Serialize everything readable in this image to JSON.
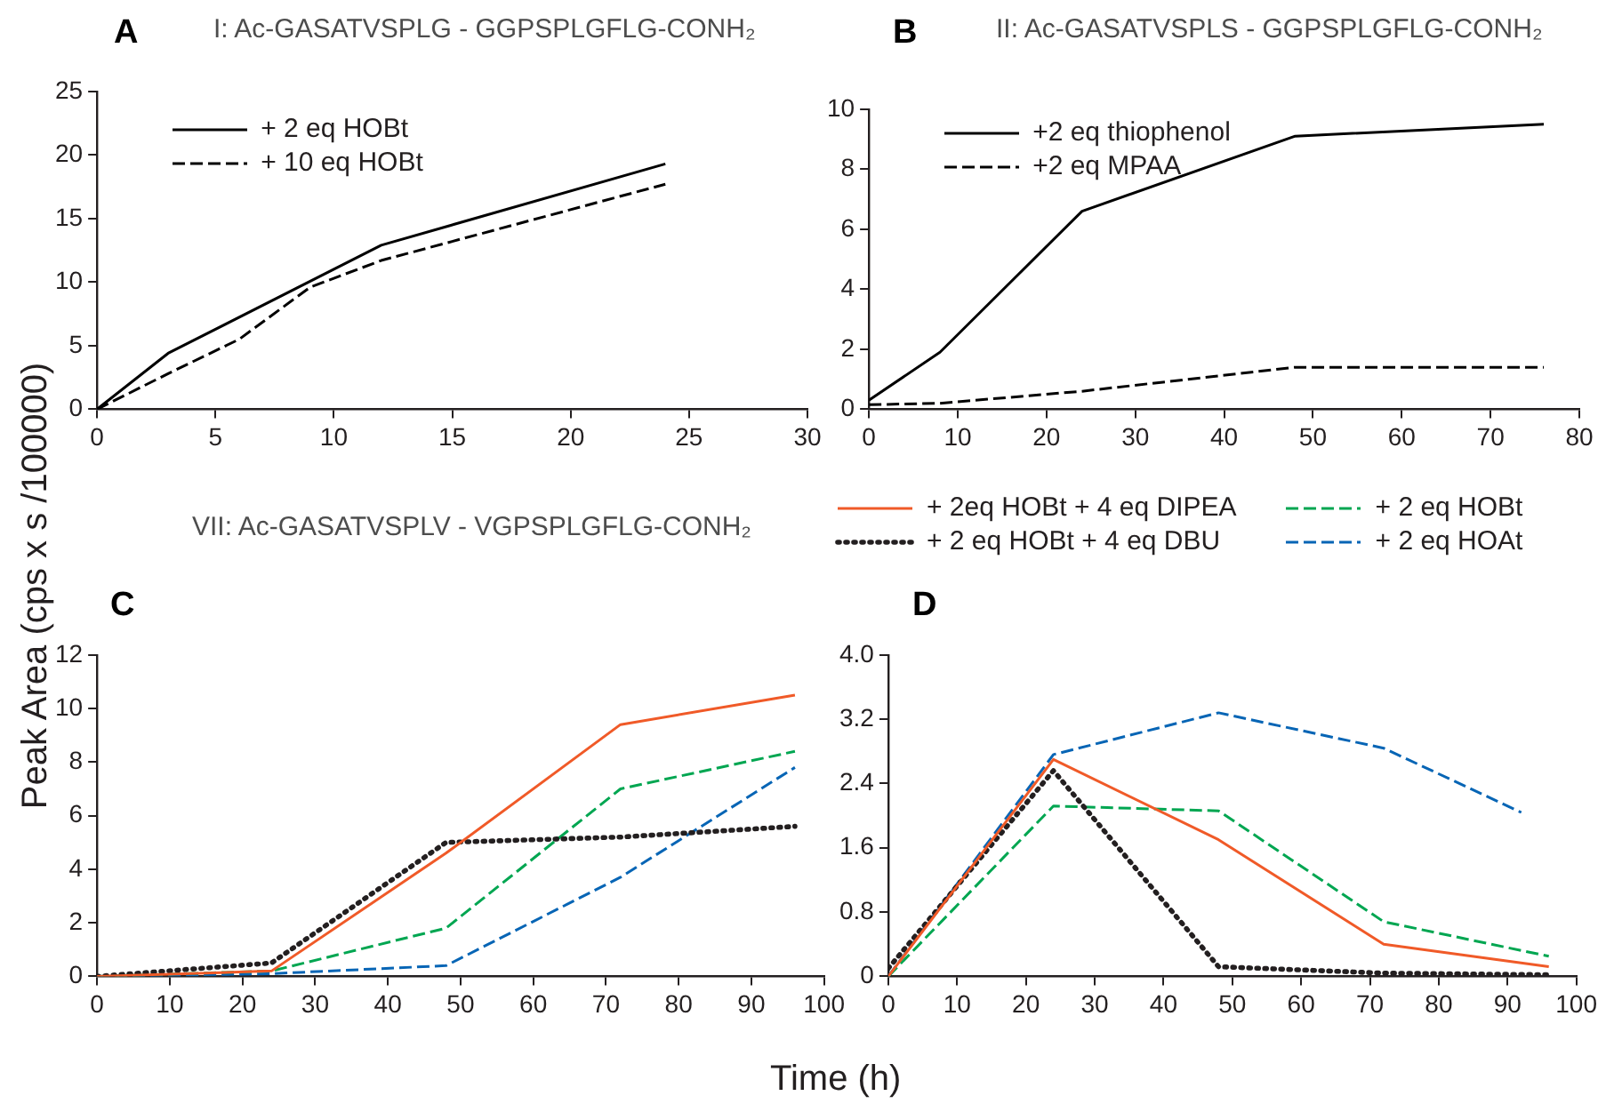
{
  "chart_data": [
    {
      "type": "line",
      "title": "I: Ac-GASATVSPLG - GGPSPLGFLG-CONH₂",
      "annotations": [
        "A"
      ],
      "xlim": [
        0,
        30
      ],
      "xticks": [
        0,
        5,
        10,
        15,
        20,
        25,
        30
      ],
      "ylim": [
        0,
        25
      ],
      "yticks": [
        0,
        5,
        10,
        15,
        20,
        25
      ],
      "legend": "top left",
      "series": [
        {
          "name": "+ 2 eq HOBt",
          "color": "#000000",
          "line_style": "solid",
          "x": [
            0,
            3,
            12,
            24
          ],
          "values": [
            0,
            4.4,
            12.9,
            19.3
          ]
        },
        {
          "name": "+ 10 eq HOBt",
          "color": "#000000",
          "line_style": "dashed",
          "x": [
            0,
            3,
            6,
            9,
            12,
            24
          ],
          "values": [
            0,
            2.8,
            5.5,
            9.6,
            11.7,
            17.7
          ]
        }
      ]
    },
    {
      "type": "line",
      "title": "II: Ac-GASATVSPLS - GGPSPLGFLG-CONH₂",
      "annotations": [
        "B"
      ],
      "xlim": [
        0,
        80
      ],
      "xticks": [
        0,
        10,
        20,
        30,
        40,
        50,
        60,
        70,
        80
      ],
      "ylim": [
        0,
        10
      ],
      "yticks": [
        0,
        2,
        4,
        6,
        8,
        10
      ],
      "legend": "top left",
      "series": [
        {
          "name": "+2 eq thiophenol",
          "color": "#000000",
          "line_style": "solid",
          "x": [
            0,
            8,
            24,
            48,
            76
          ],
          "values": [
            0.3,
            1.9,
            6.6,
            9.1,
            9.5
          ]
        },
        {
          "name": "+2 eq MPAA",
          "color": "#000000",
          "line_style": "dashed",
          "x": [
            0,
            8,
            24,
            48,
            76
          ],
          "values": [
            0.15,
            0.2,
            0.6,
            1.4,
            1.4
          ]
        }
      ]
    },
    {
      "type": "line",
      "title": "VII: Ac-GASATVSPLV - VGPSPLGFLG-CONH₂",
      "annotations": [
        "C"
      ],
      "ylabel": "Peak Area (cps x s /100000)",
      "xlabel": "Time (h)",
      "xlim": [
        0,
        100
      ],
      "xticks": [
        0,
        10,
        20,
        30,
        40,
        50,
        60,
        70,
        80,
        90,
        100
      ],
      "ylim": [
        0,
        12
      ],
      "yticks": [
        0,
        2,
        4,
        6,
        8,
        10,
        12
      ],
      "series": [
        {
          "color": "#f05a28",
          "line_style": "solid",
          "x": [
            0,
            24,
            48,
            72,
            96
          ],
          "values": [
            0,
            0.2,
            4.6,
            9.4,
            10.5
          ]
        },
        {
          "color": "#231f20",
          "line_style": "dotted",
          "x": [
            0,
            24,
            48,
            72,
            96
          ],
          "values": [
            0,
            0.5,
            5.0,
            5.2,
            5.6
          ]
        },
        {
          "color": "#00a651",
          "line_style": "dashed",
          "x": [
            0,
            24,
            48,
            72,
            96
          ],
          "values": [
            0,
            0.2,
            1.8,
            7.0,
            8.4
          ]
        },
        {
          "color": "#0765b5",
          "line_style": "dashed",
          "x": [
            0,
            24,
            48,
            72,
            96
          ],
          "values": [
            0,
            0.1,
            0.4,
            3.7,
            7.8
          ]
        }
      ]
    },
    {
      "type": "line",
      "annotations": [
        "D"
      ],
      "xlim": [
        0,
        100
      ],
      "xticks": [
        0,
        10,
        20,
        30,
        40,
        50,
        60,
        70,
        80,
        90,
        100
      ],
      "ylim": [
        0,
        4
      ],
      "yticks": [
        0,
        0.8,
        1.6,
        2.4,
        3.2,
        {
          "value": 4,
          "label": "4.0"
        }
      ],
      "legend": "top",
      "series": [
        {
          "name": "+ 2eq  HOBt + 4 eq DIPEA",
          "color": "#f05a28",
          "line_style": "solid",
          "x": [
            0,
            24,
            48,
            72,
            96
          ],
          "values": [
            0,
            2.7,
            1.7,
            0.4,
            0.12
          ]
        },
        {
          "name": "+ 2 eq HOBt + 4 eq DBU",
          "color": "#231f20",
          "line_style": "dotted",
          "x": [
            0,
            24,
            48,
            72,
            96
          ],
          "values": [
            0.1,
            2.56,
            0.12,
            0.04,
            0.02
          ]
        },
        {
          "name": "+ 2 eq HOBt",
          "color": "#00a651",
          "line_style": "dashed",
          "x": [
            0,
            24,
            48,
            72,
            96
          ],
          "values": [
            0,
            2.12,
            2.06,
            0.68,
            0.25
          ]
        },
        {
          "name": "+ 2 eq HOAt",
          "color": "#0765b5",
          "line_style": "dashed",
          "x": [
            0,
            24,
            48,
            72,
            92
          ],
          "values": [
            0,
            2.76,
            3.28,
            2.84,
            2.04
          ]
        }
      ]
    }
  ]
}
